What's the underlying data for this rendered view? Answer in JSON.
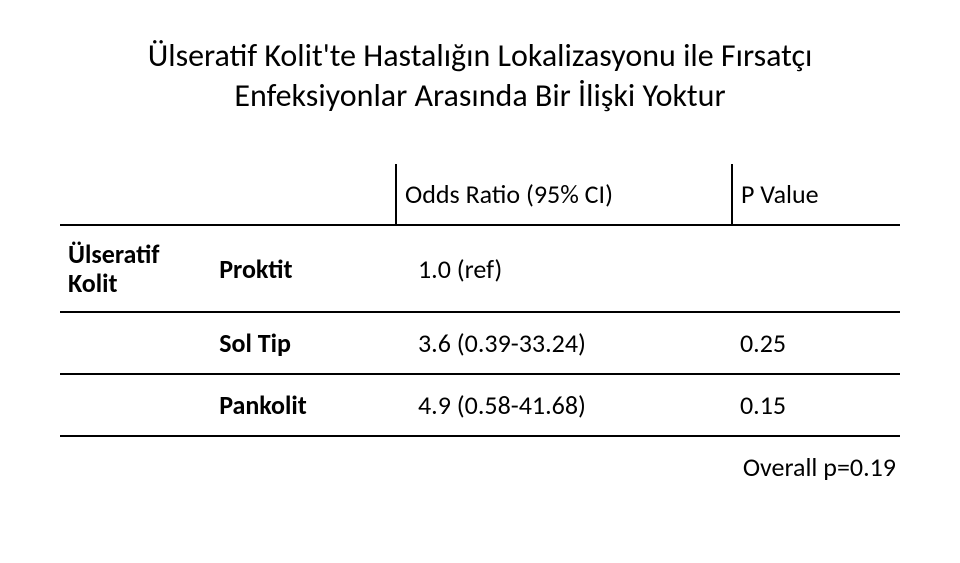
{
  "title_line1": "Ülseratif Kolit'te Hastalığın Lokalizasyonu ile Fırsatçı",
  "title_line2": "Enfeksiyonlar Arasında Bir İlişki Yoktur",
  "headers": {
    "odds_ratio": "Odds Ratio (95% CI)",
    "p_value": "P Value"
  },
  "rowgroup_label_line1": "Ülseratif",
  "rowgroup_label_line2": "Kolit",
  "rows": {
    "proktit": {
      "cat": "Proktit",
      "or": "1.0 (ref)",
      "p": ""
    },
    "soltip": {
      "cat": "Sol Tip",
      "or": "3.6 (0.39-33.24)",
      "p": "0.25"
    },
    "pankolit": {
      "cat": "Pankolit",
      "or": "4.9 (0.58-41.68)",
      "p": "0.15"
    }
  },
  "overall": "Overall p=0.19",
  "colors": {
    "text": "#000000",
    "border": "#000000",
    "bg": "#ffffff"
  },
  "fonts": {
    "title_pt": 32,
    "body_pt": 26,
    "family": "Calibri"
  }
}
